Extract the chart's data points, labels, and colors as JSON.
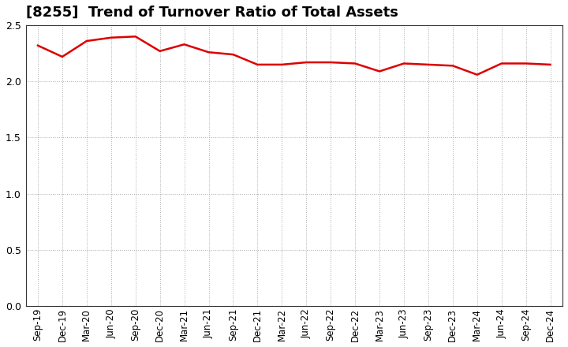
{
  "title": "[8255]  Trend of Turnover Ratio of Total Assets",
  "labels": [
    "Sep-19",
    "Dec-19",
    "Mar-20",
    "Jun-20",
    "Sep-20",
    "Dec-20",
    "Mar-21",
    "Jun-21",
    "Sep-21",
    "Dec-21",
    "Mar-22",
    "Jun-22",
    "Sep-22",
    "Dec-22",
    "Mar-23",
    "Jun-23",
    "Sep-23",
    "Dec-23",
    "Mar-24",
    "Jun-24",
    "Sep-24",
    "Dec-24"
  ],
  "values": [
    2.32,
    2.22,
    2.36,
    2.39,
    2.4,
    2.27,
    2.33,
    2.26,
    2.24,
    2.15,
    2.15,
    2.17,
    2.17,
    2.16,
    2.09,
    2.16,
    2.15,
    2.14,
    2.06,
    2.16,
    2.16,
    2.15
  ],
  "line_color": "#dd0000",
  "line_width": 1.8,
  "ylim": [
    0.0,
    2.5
  ],
  "yticks": [
    0.0,
    0.5,
    1.0,
    1.5,
    2.0,
    2.5
  ],
  "background_color": "#ffffff",
  "plot_bg_color": "#ffffff",
  "grid_color": "#aaaaaa",
  "spine_color": "#333333",
  "title_fontsize": 13,
  "tick_fontsize": 8.5,
  "fig_width": 7.2,
  "fig_height": 4.4,
  "dpi": 100
}
